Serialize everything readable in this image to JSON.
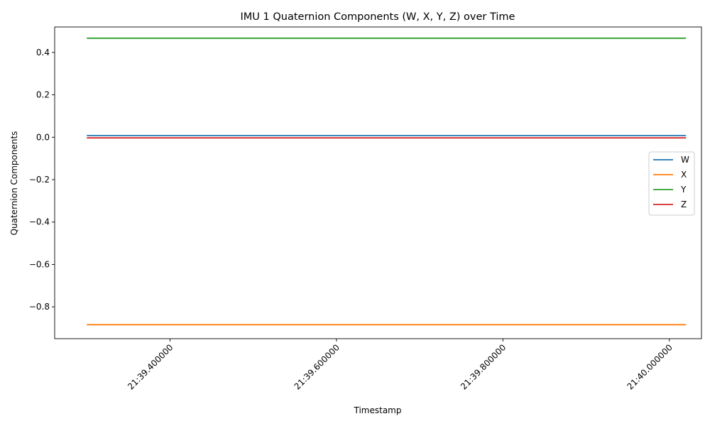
{
  "chart_data": {
    "type": "line",
    "title": "IMU 1 Quaternion Components (W, X, Y, Z) over Time",
    "xlabel": "Timestamp",
    "ylabel": "Quaternion Components",
    "x_ticks": [
      {
        "value": 0.4,
        "label": "21:39.400000"
      },
      {
        "value": 0.6,
        "label": "21:39.600000"
      },
      {
        "value": 0.8,
        "label": "21:39.800000"
      },
      {
        "value": 1.0,
        "label": "21:40.000000"
      }
    ],
    "y_ticks": [
      -0.8,
      -0.6,
      -0.4,
      -0.2,
      0.0,
      0.2,
      0.4
    ],
    "xlim": [
      0.2614,
      1.0386
    ],
    "ylim": [
      -0.95,
      0.52
    ],
    "grid": false,
    "legend_position": "center-right",
    "series": [
      {
        "name": "W",
        "color": "#1f77b4",
        "x": [
          0.3,
          1.02
        ],
        "y": [
          0.008,
          0.008
        ]
      },
      {
        "name": "X",
        "color": "#ff7f0e",
        "x": [
          0.3,
          1.02
        ],
        "y": [
          -0.884,
          -0.884
        ]
      },
      {
        "name": "Y",
        "color": "#2ca02c",
        "x": [
          0.3,
          1.02
        ],
        "y": [
          0.467,
          0.467
        ]
      },
      {
        "name": "Z",
        "color": "#d62728",
        "x": [
          0.3,
          1.02
        ],
        "y": [
          -0.003,
          -0.003
        ]
      }
    ]
  }
}
